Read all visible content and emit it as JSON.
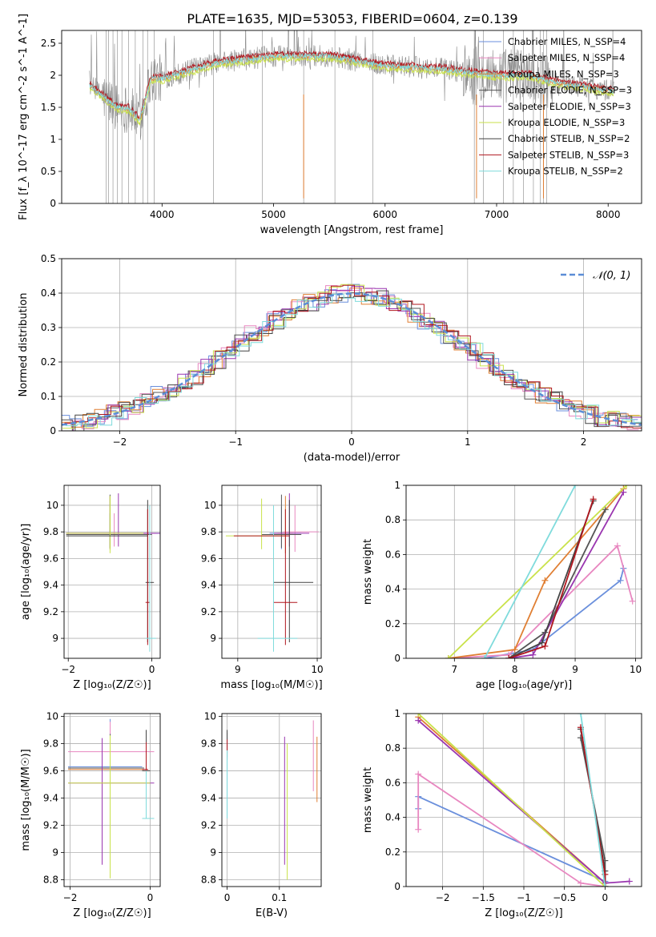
{
  "figure_title": "PLATE=1635, MJD=53053, FIBERID=0604, z=0.139",
  "models": [
    {
      "name": "Chabrier MILES, N_SSP=4",
      "color": "#6a8fdc"
    },
    {
      "name": "Salpeter MILES, N_SSP=4",
      "color": "#e887c0"
    },
    {
      "name": "Kroupa MILES, N_SSP=3",
      "color": "#e07f33"
    },
    {
      "name": "Chabrier ELODIE, N_SSP=3",
      "color": "#555555"
    },
    {
      "name": "Salpeter ELODIE, N_SSP=3",
      "color": "#9a36b0"
    },
    {
      "name": "Kroupa ELODIE, N_SSP=3",
      "color": "#c9e24a"
    },
    {
      "name": "Chabrier STELIB, N_SSP=2",
      "color": "#444444"
    },
    {
      "name": "Salpeter STELIB, N_SSP=3",
      "color": "#b0161e"
    },
    {
      "name": "Kroupa STELIB, N_SSP=2",
      "color": "#7fdbdc"
    }
  ],
  "chart_data": [
    {
      "id": "spectrum",
      "type": "line",
      "xlabel": "wavelength [Angstrom, rest frame]",
      "ylabel": "Flux [f_λ 10^-17 erg cm^-2 s^-1 A^-1]",
      "xlim": [
        3100,
        8300
      ],
      "ylim": [
        0,
        2.7
      ],
      "xticks": [
        4000,
        5000,
        6000,
        7000,
        8000
      ],
      "yticks": [
        0.0,
        0.5,
        1.0,
        1.5,
        2.0,
        2.5
      ],
      "grid": false,
      "legend": "right",
      "data_range": [
        3350,
        8050
      ],
      "continuum": [
        [
          3350,
          1.85
        ],
        [
          3450,
          1.7
        ],
        [
          3600,
          1.5
        ],
        [
          3700,
          1.48
        ],
        [
          3800,
          1.3
        ],
        [
          3900,
          1.95
        ],
        [
          4000,
          1.95
        ],
        [
          4200,
          2.05
        ],
        [
          4500,
          2.2
        ],
        [
          5000,
          2.3
        ],
        [
          5500,
          2.3
        ],
        [
          6000,
          2.15
        ],
        [
          6500,
          2.1
        ],
        [
          7000,
          2.0
        ],
        [
          7300,
          2.0
        ],
        [
          7500,
          1.9
        ],
        [
          8050,
          1.75
        ]
      ],
      "spikes": [
        3500,
        3520,
        3560,
        3600,
        3640,
        3700,
        3760,
        3830,
        3870,
        3930,
        4460,
        4900,
        5270,
        5550,
        5890,
        6800,
        6880,
        7060,
        7150,
        7240,
        7330,
        7390,
        7420,
        7450
      ]
    },
    {
      "id": "residuals",
      "type": "step",
      "xlabel": "(data-model)/error",
      "ylabel": "Normed distribution",
      "xlim": [
        -2.5,
        2.5
      ],
      "ylim": [
        0,
        0.5
      ],
      "xticks": [
        -2,
        -1,
        0,
        1,
        2
      ],
      "yticks": [
        0.0,
        0.1,
        0.2,
        0.3,
        0.4,
        0.5
      ],
      "grid": true,
      "legend": "top-right",
      "reference_label": "𝒩(0, 1)",
      "reference_color": "#5b8dd6",
      "bin_width": 0.1
    },
    {
      "id": "age-vs-Z",
      "type": "errorbar",
      "xlabel": "Z [log₁₀(Z/Z☉)]",
      "ylabel": "age  [log₁₀(age/yr)]",
      "xlim": [
        -2.1,
        0.2
      ],
      "ylim": [
        8.85,
        10.15
      ],
      "xticks": [
        -2,
        0
      ],
      "yticks": [
        9.0,
        9.2,
        9.4,
        9.6,
        9.8,
        10.0
      ],
      "grid": true,
      "points": [
        {
          "m": 0,
          "x": -1.0,
          "xerr": [
            1.05,
            1.2
          ],
          "y": 9.79,
          "yerr": [
            0.12,
            0.15
          ]
        },
        {
          "m": 1,
          "x": -0.9,
          "xerr": [
            1.15,
            1.0
          ],
          "y": 9.79,
          "yerr": [
            0.1,
            0.15
          ]
        },
        {
          "m": 2,
          "x": -1.0,
          "xerr": [
            1.05,
            0.85
          ],
          "y": 9.79,
          "yerr": [
            0.12,
            0.28
          ]
        },
        {
          "m": 3,
          "x": -1.0,
          "xerr": [
            1.05,
            1.0
          ],
          "y": 9.78,
          "yerr": [
            0.1,
            0.3
          ]
        },
        {
          "m": 4,
          "x": -0.8,
          "xerr": [
            1.25,
            1.0
          ],
          "y": 9.79,
          "yerr": [
            0.1,
            0.3
          ]
        },
        {
          "m": 5,
          "x": -1.0,
          "xerr": [
            1.05,
            0.8
          ],
          "y": 9.79,
          "yerr": [
            0.15,
            0.28
          ]
        },
        {
          "m": 6,
          "x": -0.1,
          "xerr": [
            0.05,
            0.15
          ],
          "y": 9.42,
          "yerr": [
            0.45,
            0.62
          ]
        },
        {
          "m": 7,
          "x": -0.1,
          "xerr": [
            0.05,
            0.05
          ],
          "y": 9.27,
          "yerr": [
            0.32,
            0.7
          ]
        },
        {
          "m": 8,
          "x": -0.05,
          "xerr": [
            0.1,
            0.15
          ],
          "y": 9.0,
          "yerr": [
            0.1,
            1.0
          ]
        },
        {
          "m": 6,
          "x": -1.0,
          "xerr": [
            1.05,
            0.9
          ],
          "y": 9.77,
          "yerr": [
            0.0,
            0.0
          ]
        }
      ]
    },
    {
      "id": "age-vs-mass",
      "type": "errorbar",
      "xlabel": "mass [log₁₀(M/M☉)]",
      "ylabel": "",
      "xlim": [
        8.8,
        10.05
      ],
      "ylim": [
        8.85,
        10.15
      ],
      "xticks": [
        9,
        10
      ],
      "yticks": [
        9.0,
        9.2,
        9.4,
        9.6,
        9.8,
        10.0
      ],
      "grid": true,
      "points": [
        {
          "m": 0,
          "x": 9.55,
          "xerr": [
            0.15,
            0.25
          ],
          "y": 9.79,
          "yerr": [
            0.12,
            0.2
          ]
        },
        {
          "m": 1,
          "x": 9.72,
          "xerr": [
            0.15,
            0.3
          ],
          "y": 9.8,
          "yerr": [
            0.15,
            0.2
          ]
        },
        {
          "m": 2,
          "x": 9.6,
          "xerr": [
            0.1,
            0.1
          ],
          "y": 9.79,
          "yerr": [
            0.15,
            0.28
          ]
        },
        {
          "m": 3,
          "x": 9.55,
          "xerr": [
            0.25,
            0.25
          ],
          "y": 9.78,
          "yerr": [
            0.1,
            0.3
          ]
        },
        {
          "m": 4,
          "x": 9.65,
          "xerr": [
            0.2,
            0.25
          ],
          "y": 9.79,
          "yerr": [
            0.1,
            0.3
          ]
        },
        {
          "m": 5,
          "x": 9.3,
          "xerr": [
            0.45,
            0.3
          ],
          "y": 9.77,
          "yerr": [
            0.1,
            0.28
          ]
        },
        {
          "m": 6,
          "x": 9.65,
          "xerr": [
            0.2,
            0.3
          ],
          "y": 9.42,
          "yerr": [
            0.45,
            0.62
          ]
        },
        {
          "m": 7,
          "x": 9.6,
          "xerr": [
            0.15,
            0.15
          ],
          "y": 9.27,
          "yerr": [
            0.32,
            0.7
          ]
        },
        {
          "m": 8,
          "x": 9.45,
          "xerr": [
            0.2,
            0.3
          ],
          "y": 9.0,
          "yerr": [
            0.1,
            1.0
          ]
        },
        {
          "m": 7,
          "x": 9.35,
          "xerr": [
            0.4,
            0.3
          ],
          "y": 9.77,
          "yerr": [
            0.0,
            0.0
          ]
        }
      ]
    },
    {
      "id": "weight-vs-age",
      "type": "line",
      "xlabel": "age  [log₁₀(age/yr)]",
      "ylabel": "mass weight",
      "xlim": [
        6.2,
        10.1
      ],
      "ylim": [
        0,
        1.0
      ],
      "xticks": [
        7,
        8,
        9,
        10
      ],
      "yticks": [
        0.0,
        0.2,
        0.4,
        0.6,
        0.8,
        1.0
      ],
      "grid": true,
      "series": [
        {
          "m": 0,
          "x": [
            7.5,
            8.3,
            9.75,
            9.8
          ],
          "y": [
            0.0,
            0.05,
            0.45,
            0.52
          ]
        },
        {
          "m": 1,
          "x": [
            6.9,
            7.9,
            9.7,
            9.95
          ],
          "y": [
            0.0,
            0.02,
            0.65,
            0.33
          ]
        },
        {
          "m": 2,
          "x": [
            6.9,
            8.0,
            8.5,
            9.8
          ],
          "y": [
            0.0,
            0.05,
            0.45,
            0.98
          ]
        },
        {
          "m": 3,
          "x": [
            7.9,
            8.5,
            9.5
          ],
          "y": [
            0.0,
            0.15,
            0.86
          ]
        },
        {
          "m": 4,
          "x": [
            7.9,
            8.3,
            9.8
          ],
          "y": [
            0.0,
            0.02,
            0.96
          ]
        },
        {
          "m": 5,
          "x": [
            6.9,
            9.85
          ],
          "y": [
            0.0,
            1.0
          ]
        },
        {
          "m": 6,
          "x": [
            7.9,
            8.45,
            9.3
          ],
          "y": [
            0.0,
            0.09,
            0.91
          ]
        },
        {
          "m": 7,
          "x": [
            7.9,
            8.5,
            9.3
          ],
          "y": [
            0.0,
            0.07,
            0.92
          ]
        },
        {
          "m": 8,
          "x": [
            7.5,
            9.0
          ],
          "y": [
            0.0,
            1.0
          ]
        }
      ]
    },
    {
      "id": "mass-vs-Z",
      "type": "errorbar",
      "xlabel": "Z [log₁₀(Z/Z☉)]",
      "ylabel": "mass [log₁₀(M/M☉)]",
      "xlim": [
        -2.15,
        0.25
      ],
      "ylim": [
        8.75,
        10.02
      ],
      "xticks": [
        -2,
        0
      ],
      "yticks": [
        8.8,
        9.0,
        9.2,
        9.4,
        9.6,
        9.8,
        10.0
      ],
      "grid": true,
      "points": [
        {
          "m": 0,
          "x": -1.0,
          "xerr": [
            1.05,
            0.8
          ],
          "y": 9.63,
          "yerr": [
            0.38,
            0.35
          ]
        },
        {
          "m": 1,
          "x": -1.0,
          "xerr": [
            1.05,
            1.1
          ],
          "y": 9.74,
          "yerr": [
            0.2,
            0.22
          ]
        },
        {
          "m": 2,
          "x": -1.0,
          "xerr": [
            1.05,
            0.85
          ],
          "y": 9.61,
          "yerr": [
            0.25,
            0.25
          ]
        },
        {
          "m": 3,
          "x": -1.0,
          "xerr": [
            1.05,
            0.85
          ],
          "y": 9.62,
          "yerr": [
            0.2,
            0.25
          ]
        },
        {
          "m": 4,
          "x": -1.2,
          "xerr": [
            0.85,
            1.3
          ],
          "y": 9.51,
          "yerr": [
            0.6,
            0.33
          ]
        },
        {
          "m": 5,
          "x": -1.0,
          "xerr": [
            1.05,
            1.0
          ],
          "y": 9.51,
          "yerr": [
            0.7,
            0.35
          ]
        },
        {
          "m": 6,
          "x": -0.1,
          "xerr": [
            0.1,
            0.1
          ],
          "y": 9.6,
          "yerr": [
            0.1,
            0.3
          ]
        },
        {
          "m": 7,
          "x": -0.1,
          "xerr": [
            0.1,
            0.05
          ],
          "y": 9.61,
          "yerr": [
            0.15,
            0.2
          ]
        },
        {
          "m": 8,
          "x": -0.1,
          "xerr": [
            0.1,
            0.2
          ],
          "y": 9.25,
          "yerr": [
            0.0,
            0.35
          ]
        }
      ]
    },
    {
      "id": "mass-vs-ebv",
      "type": "errorbar",
      "xlabel": "E(B-V)",
      "ylabel": "",
      "xlim": [
        -0.01,
        0.18
      ],
      "ylim": [
        8.75,
        10.02
      ],
      "xticks": [
        0.0,
        0.1
      ],
      "yticks": [
        8.8,
        9.0,
        9.2,
        9.4,
        9.6,
        9.8,
        10.0
      ],
      "grid": true,
      "points": [
        {
          "m": 0,
          "x": 0.0,
          "y": 9.55,
          "yerr": [
            0.3,
            0.3
          ]
        },
        {
          "m": 1,
          "x": 0.165,
          "y": 9.7,
          "yerr": [
            0.25,
            0.27
          ]
        },
        {
          "m": 2,
          "x": 0.172,
          "y": 9.62,
          "yerr": [
            0.25,
            0.23
          ]
        },
        {
          "m": 3,
          "x": 0.0,
          "y": 9.78,
          "yerr": [
            0.1,
            0.1
          ]
        },
        {
          "m": 4,
          "x": 0.11,
          "y": 9.47,
          "yerr": [
            0.56,
            0.38
          ]
        },
        {
          "m": 5,
          "x": 0.115,
          "y": 9.5,
          "yerr": [
            0.7,
            0.3
          ]
        },
        {
          "m": 6,
          "x": 0.0,
          "y": 9.8,
          "yerr": [
            0.1,
            0.1
          ]
        },
        {
          "m": 7,
          "x": 0.0,
          "y": 9.78,
          "yerr": [
            0.05,
            0.05
          ]
        },
        {
          "m": 8,
          "x": 0.0,
          "y": 9.4,
          "yerr": [
            0.15,
            0.35
          ]
        }
      ]
    },
    {
      "id": "weight-vs-Z",
      "type": "line",
      "xlabel": "Z [log₁₀(Z/Z☉)]",
      "ylabel": "mass weight",
      "xlim": [
        -2.45,
        0.45
      ],
      "ylim": [
        0,
        1.0
      ],
      "xticks": [
        -2.0,
        -1.5,
        -1.0,
        -0.5,
        0.0
      ],
      "yticks": [
        0.0,
        0.2,
        0.4,
        0.6,
        0.8,
        1.0
      ],
      "grid": true,
      "series": [
        {
          "m": 0,
          "x": [
            -2.3,
            -2.3,
            0.0
          ],
          "y": [
            0.45,
            0.52,
            0.03
          ]
        },
        {
          "m": 1,
          "x": [
            -2.3,
            -2.3,
            -0.3,
            0.0
          ],
          "y": [
            0.33,
            0.65,
            0.02,
            0.0
          ]
        },
        {
          "m": 2,
          "x": [
            -2.3,
            0.0,
            0.0
          ],
          "y": [
            0.98,
            0.02,
            0.0
          ]
        },
        {
          "m": 3,
          "x": [
            -0.3,
            0.0,
            0.0
          ],
          "y": [
            0.86,
            0.15,
            0.0
          ]
        },
        {
          "m": 4,
          "x": [
            -2.3,
            0.0,
            0.3
          ],
          "y": [
            0.96,
            0.02,
            0.03
          ]
        },
        {
          "m": 5,
          "x": [
            -2.3,
            0.0
          ],
          "y": [
            1.0,
            0.0
          ]
        },
        {
          "m": 6,
          "x": [
            -0.3,
            0.0,
            0.0
          ],
          "y": [
            0.91,
            0.09,
            0.0
          ]
        },
        {
          "m": 7,
          "x": [
            -0.3,
            0.0,
            0.0
          ],
          "y": [
            0.92,
            0.07,
            0.0
          ]
        },
        {
          "m": 8,
          "x": [
            -0.3,
            0.0
          ],
          "y": [
            1.0,
            0.0
          ]
        }
      ]
    }
  ]
}
